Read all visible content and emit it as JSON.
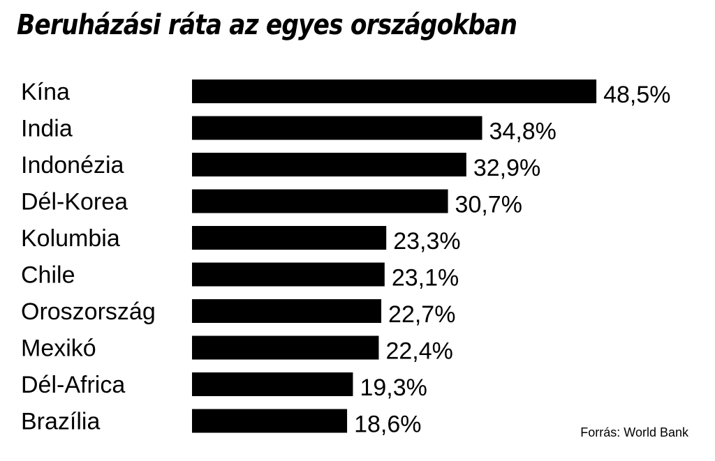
{
  "chart_data": {
    "type": "bar",
    "orientation": "horizontal",
    "title": "Beruházási ráta az egyes országokban",
    "categories": [
      "Kína",
      "India",
      "Indonézia",
      "Dél-Korea",
      "Kolumbia",
      "Chile",
      "Oroszország",
      "Mexikó",
      "Dél-Africa",
      "Brazília"
    ],
    "values": [
      48.5,
      34.8,
      32.9,
      30.7,
      23.3,
      23.1,
      22.7,
      22.4,
      19.3,
      18.6
    ],
    "value_labels": [
      "48,5%",
      "34,8%",
      "32,9%",
      "30,7%",
      "23,3%",
      "23,1%",
      "22,7%",
      "22,4%",
      "19,3%",
      "18,6%"
    ],
    "unit": "%",
    "bar_color": "#000000",
    "grid": false,
    "legend": "none",
    "source": "Forrás: World Bank"
  }
}
